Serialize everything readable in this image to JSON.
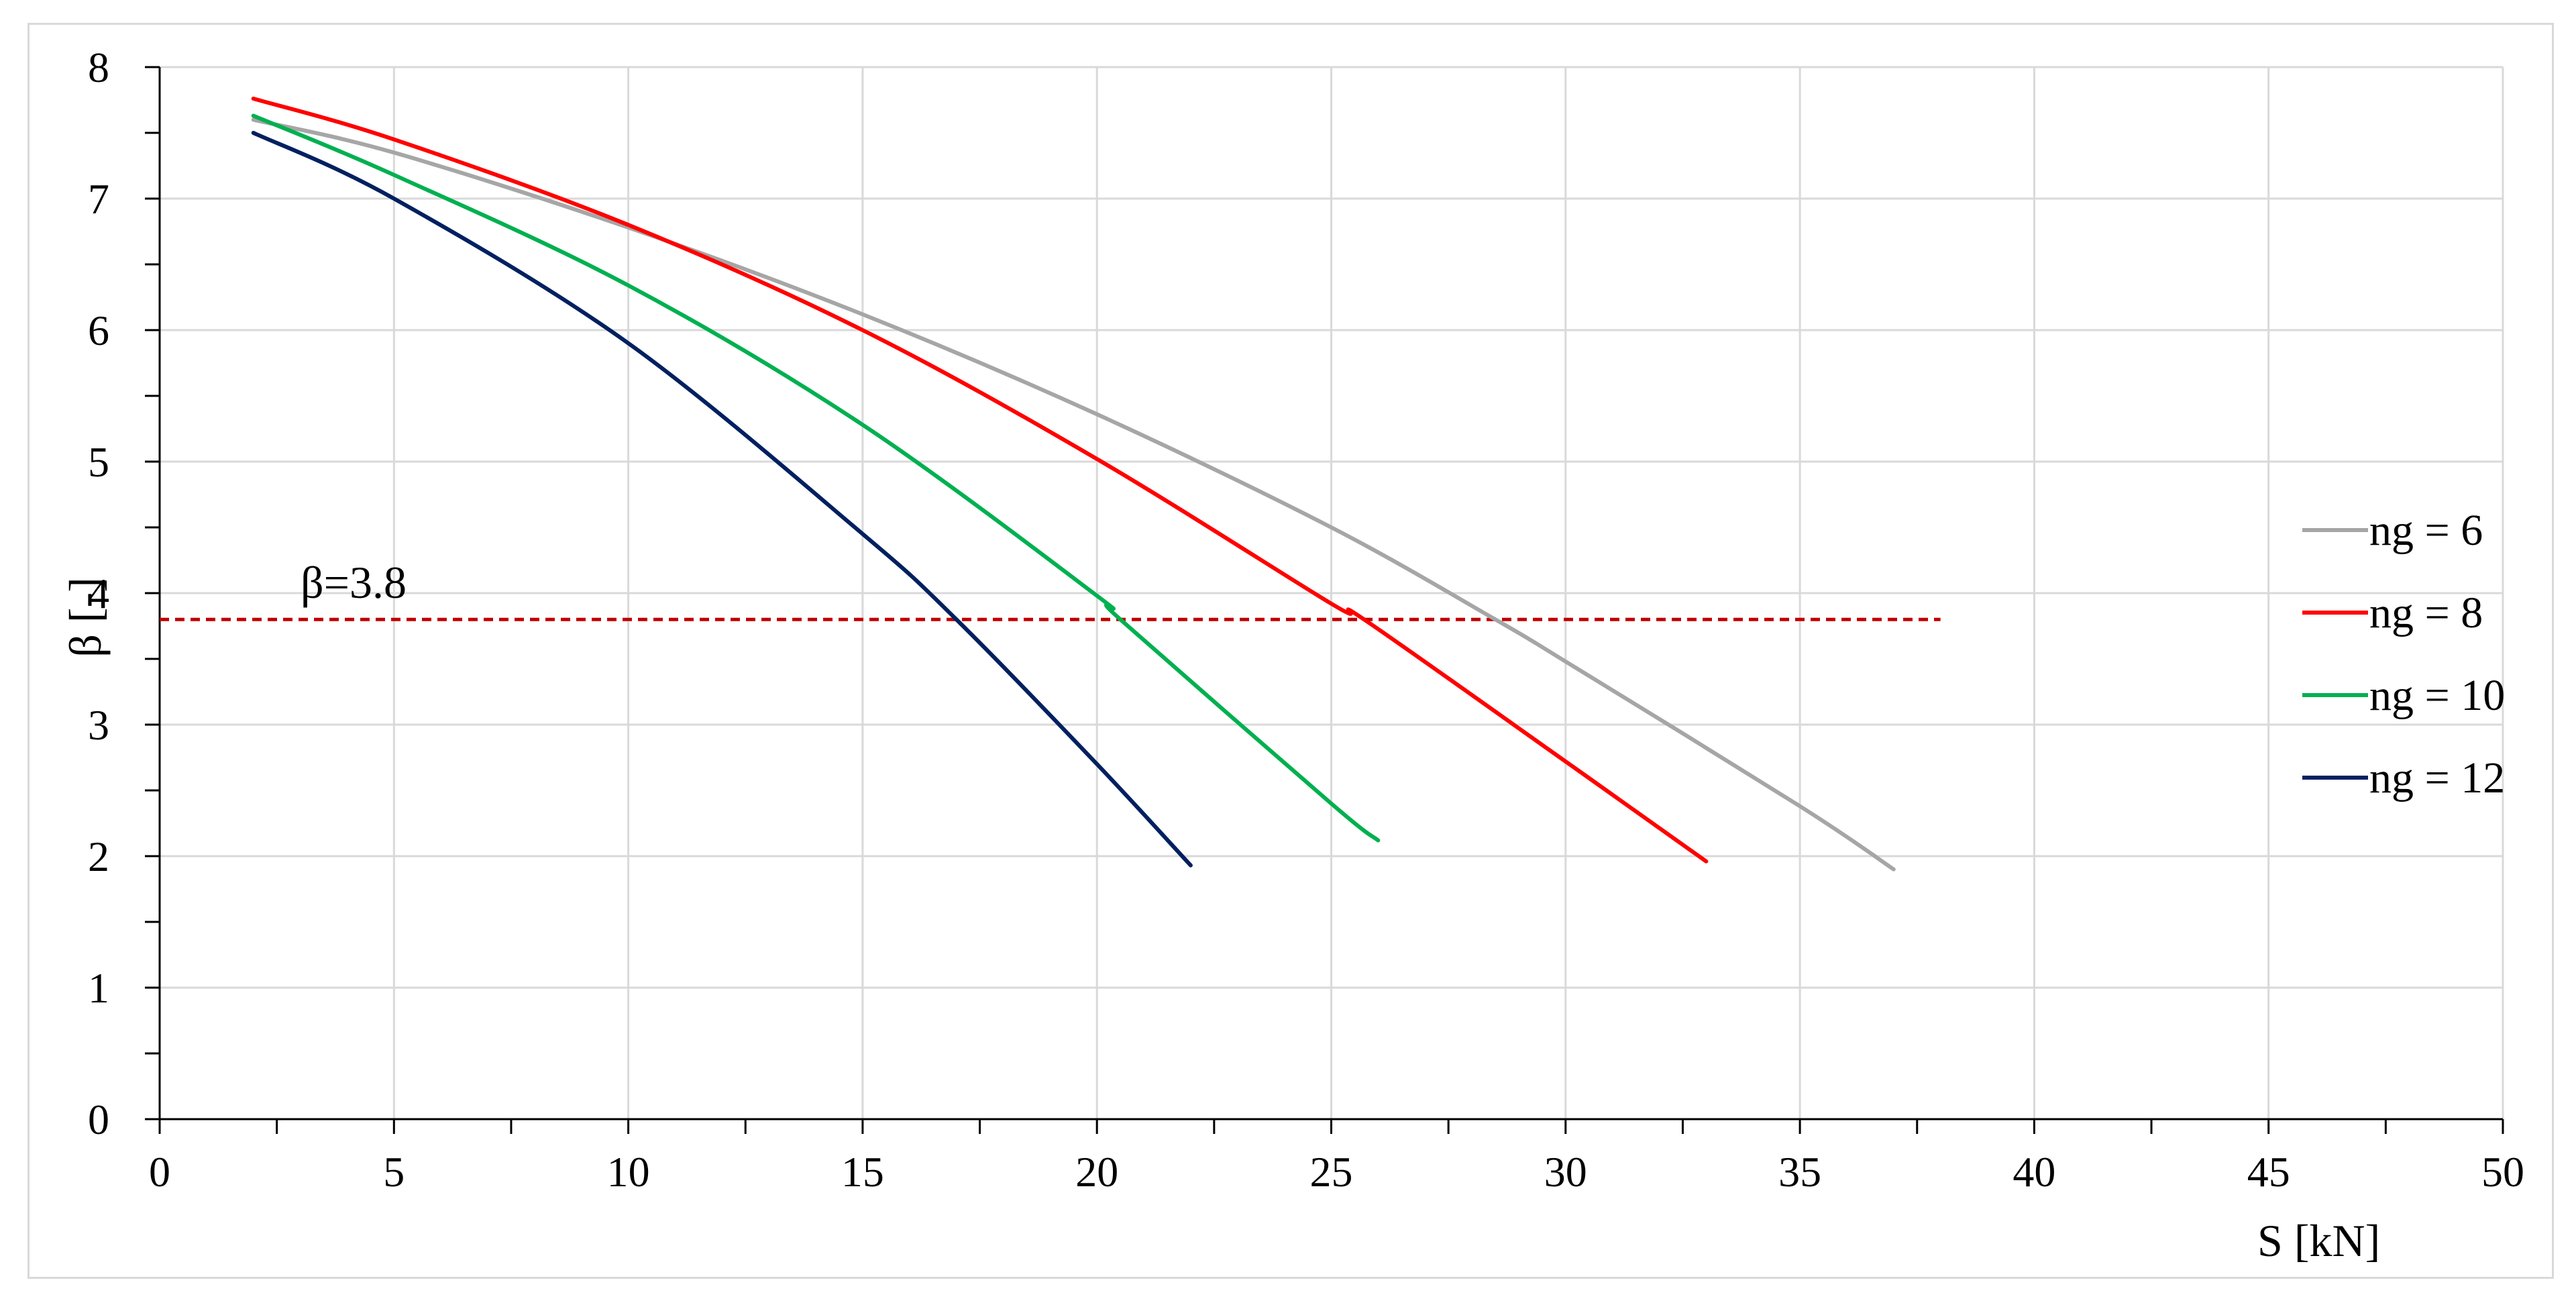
{
  "chart_data": {
    "type": "line",
    "title": "",
    "xlabel": "S [kN]",
    "ylabel": "β [-]",
    "xlim": [
      0,
      50
    ],
    "ylim": [
      0,
      8
    ],
    "xticks": [
      0,
      5,
      10,
      15,
      20,
      25,
      30,
      35,
      40,
      45,
      50
    ],
    "yticks": [
      0,
      1,
      2,
      3,
      4,
      5,
      6,
      7,
      8
    ],
    "x_minor_step": 2.5,
    "y_minor_step": 0.5,
    "grid": true,
    "legend_position": "right",
    "series": [
      {
        "name": "ng = 6",
        "color": "#a6a6a6",
        "x": [
          2,
          5,
          10,
          15,
          20,
          25,
          28.5,
          30,
          35,
          37
        ],
        "y": [
          7.6,
          7.35,
          6.78,
          6.12,
          5.36,
          4.5,
          3.8,
          3.48,
          2.38,
          1.9
        ]
      },
      {
        "name": "ng = 8",
        "color": "#ff0000",
        "x": [
          2,
          5,
          10,
          15,
          20,
          25,
          25.7,
          30,
          33
        ],
        "y": [
          7.76,
          7.45,
          6.8,
          6.0,
          5.02,
          3.92,
          3.8,
          2.72,
          1.96
        ]
      },
      {
        "name": "ng = 10",
        "color": "#00b050",
        "x": [
          2,
          5,
          10,
          15,
          20,
          20.5,
          25,
          26
        ],
        "y": [
          7.63,
          7.18,
          6.34,
          5.28,
          3.98,
          3.8,
          2.4,
          2.12
        ]
      },
      {
        "name": "ng = 12",
        "color": "#002060",
        "x": [
          2,
          5,
          10,
          15,
          17,
          20,
          22
        ],
        "y": [
          7.5,
          7.0,
          5.9,
          4.45,
          3.8,
          2.7,
          1.93
        ]
      }
    ],
    "threshold": {
      "label": "β=3.8",
      "y": 3.8,
      "x_from": 0,
      "x_to": 38,
      "color": "#c00000",
      "style": "dashed"
    }
  }
}
